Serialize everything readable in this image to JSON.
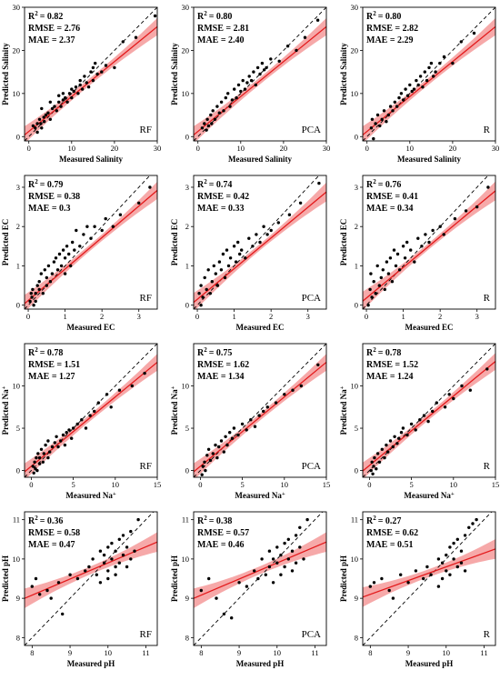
{
  "chart_data": [
    {
      "type": "scatter",
      "xlabel": "Measured Salinity",
      "ylabel": "Predicted Salinity",
      "xlim": [
        -1,
        30
      ],
      "ylim": [
        -1,
        30
      ],
      "xticks": [
        0,
        10,
        20,
        30
      ],
      "yticks": [
        0,
        10,
        20,
        30
      ],
      "r2_label": "R",
      "r2_sup": "2",
      "r2_value": "= 0.82",
      "rmse": "RMSE = 2.76",
      "mae": "MAE = 2.37",
      "model": "RF",
      "fit": {
        "slope": 0.81,
        "intercept": 1.2
      },
      "band": [
        0.8,
        2.0
      ],
      "x": [
        1.0,
        1.5,
        2.0,
        2.0,
        2.5,
        2.8,
        3.0,
        3.0,
        3.5,
        3.6,
        4.0,
        4.5,
        5.0,
        5.0,
        5.5,
        6.0,
        6.5,
        7.0,
        7.0,
        7.5,
        8.0,
        8.0,
        8.5,
        9.0,
        9.5,
        10.0,
        10.0,
        10.5,
        11.0,
        11.5,
        12.0,
        12.0,
        12.5,
        13.0,
        13.5,
        14.0,
        14.5,
        15.0,
        15.0,
        15.5,
        16.0,
        17.0,
        18.0,
        20.0,
        22.0,
        25.0,
        29.5
      ],
      "y": [
        2.5,
        2.0,
        3.0,
        1.0,
        4.0,
        3.0,
        6.5,
        2.0,
        4.5,
        3.5,
        5.0,
        5.5,
        8.0,
        4.0,
        6.5,
        7.0,
        6.0,
        9.5,
        8.0,
        7.0,
        10.0,
        8.5,
        9.0,
        8.0,
        10.0,
        11.0,
        9.0,
        10.5,
        11.5,
        10.0,
        12.0,
        13.0,
        11.0,
        14.0,
        12.5,
        11.5,
        15.0,
        16.0,
        13.0,
        17.0,
        14.5,
        15.0,
        16.5,
        16.0,
        22.0,
        23.0,
        28.0
      ]
    },
    {
      "type": "scatter",
      "xlabel": "Measured Salinity",
      "ylabel": "Predicted Salinity",
      "xlim": [
        -1,
        30
      ],
      "ylim": [
        -1,
        30
      ],
      "xticks": [
        0,
        10,
        20,
        30
      ],
      "yticks": [
        0,
        10,
        20,
        30
      ],
      "r2_label": "R",
      "r2_sup": "2",
      "r2_value": "= 0.80",
      "rmse": "RMSE = 2.81",
      "mae": "MAE = 2.40",
      "model": "PCA",
      "fit": {
        "slope": 0.81,
        "intercept": 1.2
      },
      "band": [
        0.8,
        2.0
      ],
      "x": [
        1.0,
        1.5,
        2.0,
        2.2,
        2.5,
        3.0,
        3.2,
        3.5,
        4.0,
        4.5,
        5.0,
        5.5,
        6.0,
        6.5,
        7.0,
        7.5,
        8.0,
        8.5,
        9.0,
        9.5,
        10.0,
        10.5,
        11.0,
        11.5,
        12.0,
        12.5,
        13.0,
        13.5,
        14.0,
        14.5,
        15.0,
        15.5,
        16.0,
        17.0,
        19.0,
        21.0,
        23.0,
        25.0,
        28.0
      ],
      "y": [
        2.0,
        3.0,
        1.5,
        4.0,
        2.5,
        5.0,
        3.0,
        6.0,
        4.0,
        7.0,
        5.5,
        8.0,
        6.0,
        9.0,
        10.0,
        7.0,
        8.5,
        11.0,
        9.0,
        12.0,
        10.5,
        13.0,
        11.0,
        12.5,
        14.0,
        13.0,
        15.0,
        12.0,
        16.0,
        14.5,
        17.0,
        15.5,
        16.0,
        18.0,
        17.5,
        21.0,
        20.0,
        23.0,
        27.0
      ]
    },
    {
      "type": "scatter",
      "xlabel": "Measured Salinity",
      "ylabel": "Predicted Salinity",
      "xlim": [
        -1,
        30
      ],
      "ylim": [
        -1,
        30
      ],
      "xticks": [
        0,
        10,
        20,
        30
      ],
      "yticks": [
        0,
        10,
        20,
        30
      ],
      "r2_label": "R",
      "r2_sup": "2",
      "r2_value": "= 0.80",
      "rmse": "RMSE = 2.82",
      "mae": "MAE = 2.29",
      "model": "R",
      "fit": {
        "slope": 0.81,
        "intercept": 1.2
      },
      "band": [
        0.8,
        2.0
      ],
      "x": [
        1.0,
        1.2,
        1.5,
        2.0,
        2.5,
        3.0,
        3.5,
        4.0,
        4.5,
        5.0,
        5.5,
        6.0,
        6.5,
        7.0,
        7.5,
        8.0,
        8.5,
        9.0,
        9.5,
        10.0,
        10.5,
        11.0,
        11.5,
        12.0,
        12.5,
        13.0,
        13.5,
        14.0,
        14.5,
        15.0,
        15.5,
        16.0,
        17.0,
        18.0,
        20.0,
        22.0,
        25.0
      ],
      "y": [
        2.0,
        4.0,
        -0.5,
        3.0,
        5.0,
        2.5,
        4.0,
        6.0,
        3.5,
        5.0,
        7.0,
        6.0,
        8.0,
        7.0,
        9.0,
        10.0,
        8.5,
        11.0,
        9.5,
        12.0,
        10.5,
        11.0,
        13.0,
        12.0,
        14.0,
        11.5,
        15.0,
        13.0,
        16.0,
        17.0,
        14.0,
        15.0,
        17.0,
        18.5,
        17.0,
        22.0,
        24.0
      ]
    },
    {
      "type": "scatter",
      "xlabel": "Measured EC",
      "ylabel": "Predicted EC",
      "xlim": [
        -0.1,
        3.5
      ],
      "ylim": [
        -0.1,
        3.3
      ],
      "xticks": [
        0,
        1,
        2,
        3
      ],
      "yticks": [
        0,
        1,
        2,
        3
      ],
      "r2_label": "R",
      "r2_sup": "2",
      "r2_value": "= 0.79",
      "rmse": "RMSE = 0.38",
      "mae": "MAE = 0.3",
      "model": "RF",
      "fit": {
        "slope": 0.8,
        "intercept": 0.12
      },
      "band": [
        0.08,
        0.22
      ],
      "x": [
        0.05,
        0.08,
        0.1,
        0.12,
        0.15,
        0.2,
        0.2,
        0.25,
        0.3,
        0.3,
        0.35,
        0.4,
        0.45,
        0.5,
        0.5,
        0.55,
        0.6,
        0.65,
        0.7,
        0.75,
        0.8,
        0.85,
        0.9,
        0.95,
        1.0,
        1.0,
        1.05,
        1.1,
        1.15,
        1.2,
        1.25,
        1.3,
        1.4,
        1.5,
        1.6,
        1.7,
        1.8,
        2.0,
        2.1,
        2.3,
        2.5,
        3.0,
        3.3
      ],
      "y": [
        0.1,
        0.3,
        0.2,
        0.4,
        0.0,
        0.3,
        0.1,
        0.5,
        0.4,
        0.6,
        0.8,
        0.3,
        0.9,
        0.5,
        0.7,
        1.0,
        0.6,
        0.8,
        1.1,
        1.2,
        0.9,
        1.3,
        1.0,
        1.4,
        1.2,
        0.8,
        1.5,
        1.3,
        1.0,
        1.6,
        1.4,
        1.9,
        1.5,
        1.8,
        2.0,
        1.7,
        2.0,
        1.9,
        2.2,
        2.0,
        2.3,
        2.6,
        3.0
      ]
    },
    {
      "type": "scatter",
      "xlabel": "Measured EC",
      "ylabel": "Predicted EC",
      "xlim": [
        -0.1,
        3.5
      ],
      "ylim": [
        -0.1,
        3.3
      ],
      "xticks": [
        0,
        1,
        2,
        3
      ],
      "yticks": [
        0,
        1,
        2,
        3
      ],
      "r2_label": "R",
      "r2_sup": "2",
      "r2_value": "= 0.74",
      "rmse": "RMSE = 0.42",
      "mae": "MAE = 0.33",
      "model": "PCA",
      "fit": {
        "slope": 0.78,
        "intercept": 0.15
      },
      "band": [
        0.08,
        0.24
      ],
      "x": [
        0.05,
        0.1,
        0.1,
        0.15,
        0.2,
        0.25,
        0.3,
        0.35,
        0.4,
        0.45,
        0.5,
        0.55,
        0.6,
        0.65,
        0.7,
        0.75,
        0.8,
        0.85,
        0.9,
        1.0,
        1.05,
        1.1,
        1.15,
        1.2,
        1.3,
        1.4,
        1.5,
        1.6,
        1.7,
        1.8,
        1.9,
        2.0,
        2.2,
        2.5,
        2.8,
        3.3
      ],
      "y": [
        0.3,
        0.0,
        0.5,
        0.2,
        0.7,
        0.4,
        0.9,
        0.3,
        0.6,
        1.0,
        0.8,
        0.5,
        1.1,
        0.9,
        1.3,
        0.7,
        1.4,
        1.0,
        1.2,
        1.5,
        1.1,
        1.6,
        1.3,
        1.4,
        1.2,
        1.7,
        1.5,
        1.8,
        1.6,
        2.0,
        1.8,
        1.9,
        2.1,
        2.3,
        2.6,
        3.1
      ]
    },
    {
      "type": "scatter",
      "xlabel": "Measured EC",
      "ylabel": "Predicted EC",
      "xlim": [
        -0.1,
        3.5
      ],
      "ylim": [
        -0.1,
        3.3
      ],
      "xticks": [
        0,
        1,
        2,
        3
      ],
      "yticks": [
        0,
        1,
        2,
        3
      ],
      "r2_label": "R",
      "r2_sup": "2",
      "r2_value": "= 0.76",
      "rmse": "RMSE = 0.41",
      "mae": "MAE = 0.34",
      "model": "R",
      "fit": {
        "slope": 0.78,
        "intercept": 0.18
      },
      "band": [
        0.08,
        0.24
      ],
      "x": [
        0.05,
        0.1,
        0.12,
        0.15,
        0.2,
        0.25,
        0.3,
        0.35,
        0.4,
        0.45,
        0.5,
        0.55,
        0.6,
        0.65,
        0.7,
        0.75,
        0.8,
        0.85,
        0.9,
        1.0,
        1.05,
        1.1,
        1.2,
        1.3,
        1.4,
        1.5,
        1.6,
        1.7,
        1.8,
        2.0,
        2.1,
        2.4,
        2.7,
        3.0,
        3.3
      ],
      "y": [
        0.0,
        0.4,
        0.8,
        0.2,
        0.6,
        0.3,
        1.0,
        0.5,
        0.7,
        0.9,
        0.4,
        1.1,
        0.8,
        1.2,
        0.6,
        1.4,
        1.0,
        1.3,
        0.9,
        1.5,
        1.2,
        1.6,
        1.4,
        1.1,
        1.7,
        1.5,
        1.8,
        1.6,
        1.9,
        2.0,
        1.8,
        2.2,
        2.4,
        2.5,
        3.0
      ]
    },
    {
      "type": "scatter",
      "xlabel": "Measured Na+",
      "ylabel": "Predicted Na+",
      "xlim": [
        -0.8,
        15
      ],
      "ylim": [
        -0.8,
        15
      ],
      "xticks": [
        0,
        5,
        10,
        15
      ],
      "yticks": [
        0,
        5,
        10
      ],
      "r2_label": "R",
      "r2_sup": "2",
      "r2_value": "= 0.78",
      "rmse": "RMSE = 1.51",
      "mae": "MAE = 1.27",
      "model": "RF",
      "fit": {
        "slope": 0.82,
        "intercept": 0.5
      },
      "band": [
        0.4,
        1.0
      ],
      "x": [
        0.2,
        0.3,
        0.4,
        0.5,
        0.6,
        0.7,
        0.8,
        1.0,
        1.0,
        1.2,
        1.4,
        1.5,
        1.7,
        2.0,
        2.0,
        2.2,
        2.5,
        2.8,
        3.0,
        3.2,
        3.5,
        3.8,
        4.0,
        4.2,
        4.5,
        4.8,
        5.0,
        5.5,
        6.0,
        6.5,
        7.0,
        7.5,
        8.0,
        9.0,
        9.5,
        10.5,
        12.0,
        13.5
      ],
      "y": [
        0.5,
        -0.3,
        1.0,
        0.2,
        1.5,
        0.0,
        2.0,
        0.8,
        1.5,
        2.5,
        1.0,
        2.0,
        3.0,
        1.5,
        3.5,
        2.2,
        2.8,
        3.3,
        4.0,
        2.8,
        3.5,
        4.2,
        3.0,
        4.5,
        4.8,
        3.8,
        5.0,
        5.5,
        6.0,
        5.0,
        6.5,
        7.0,
        8.0,
        9.0,
        7.5,
        9.5,
        10.0,
        11.5
      ]
    },
    {
      "type": "scatter",
      "xlabel": "Measured Na+",
      "ylabel": "Predicted Na+",
      "xlim": [
        -0.8,
        15
      ],
      "ylim": [
        -0.8,
        15
      ],
      "xticks": [
        0,
        5,
        10,
        15
      ],
      "yticks": [
        0,
        5,
        10
      ],
      "r2_label": "R",
      "r2_sup": "2",
      "r2_value": "= 0.75",
      "rmse": "RMSE = 1.62",
      "mae": "MAE = 1.34",
      "model": "PCA",
      "fit": {
        "slope": 0.82,
        "intercept": 0.5
      },
      "band": [
        0.4,
        1.0
      ],
      "x": [
        0.2,
        0.3,
        0.5,
        0.6,
        0.8,
        1.0,
        1.2,
        1.5,
        1.8,
        2.0,
        2.2,
        2.5,
        2.8,
        3.0,
        3.2,
        3.5,
        3.8,
        4.0,
        4.5,
        5.0,
        5.5,
        6.0,
        6.5,
        7.0,
        7.5,
        8.0,
        9.0,
        10.0,
        11.0,
        12.0,
        14.0
      ],
      "y": [
        -0.5,
        0.5,
        1.0,
        0.0,
        1.8,
        2.5,
        1.2,
        2.0,
        3.0,
        1.5,
        2.8,
        3.5,
        2.2,
        4.0,
        3.0,
        4.5,
        3.8,
        5.0,
        4.2,
        5.5,
        4.8,
        6.0,
        5.2,
        6.5,
        7.0,
        7.5,
        8.0,
        9.0,
        9.5,
        10.0,
        12.5
      ]
    },
    {
      "type": "scatter",
      "xlabel": "Measured Na+",
      "ylabel": "Predicted Na+",
      "xlim": [
        -0.8,
        15
      ],
      "ylim": [
        -0.8,
        15
      ],
      "xticks": [
        0,
        5,
        10,
        15
      ],
      "yticks": [
        0,
        5,
        10
      ],
      "r2_label": "R",
      "r2_sup": "2",
      "r2_value": "= 0.78",
      "rmse": "RMSE = 1.52",
      "mae": "MAE = 1.24",
      "model": "R",
      "fit": {
        "slope": 0.82,
        "intercept": 0.6
      },
      "band": [
        0.4,
        1.0
      ],
      "x": [
        0.2,
        0.3,
        0.4,
        0.5,
        0.6,
        0.8,
        1.0,
        1.2,
        1.5,
        1.8,
        2.0,
        2.2,
        2.5,
        2.8,
        3.0,
        3.3,
        3.5,
        3.8,
        4.0,
        4.5,
        5.0,
        5.5,
        6.0,
        6.5,
        7.0,
        7.5,
        8.0,
        9.0,
        9.5,
        10.0,
        11.0,
        12.0,
        14.0
      ],
      "y": [
        0.0,
        1.0,
        -0.4,
        0.5,
        1.5,
        0.2,
        2.0,
        1.0,
        2.5,
        1.5,
        3.0,
        2.2,
        3.5,
        2.8,
        4.0,
        3.2,
        3.8,
        4.5,
        5.0,
        4.2,
        5.5,
        4.8,
        6.0,
        6.5,
        5.8,
        7.0,
        8.0,
        7.5,
        9.0,
        8.5,
        10.0,
        9.5,
        12.0
      ]
    },
    {
      "type": "scatter",
      "xlabel": "Measured pH",
      "ylabel": "Predicted pH",
      "xlim": [
        7.8,
        11.3
      ],
      "ylim": [
        7.8,
        11.2
      ],
      "xticks": [
        8,
        9,
        10,
        11
      ],
      "yticks": [
        8,
        9,
        10,
        11
      ],
      "r2_label": "R",
      "r2_sup": "2",
      "r2_value": "= 0.36",
      "rmse": "RMSE = 0.58",
      "mae": "MAE = 0.47",
      "model": "RF",
      "fit": {
        "slope": 0.41,
        "intercept": 5.8
      },
      "band": [
        0.1,
        0.25
      ],
      "x": [
        8.0,
        8.1,
        8.2,
        8.4,
        8.5,
        8.7,
        8.8,
        9.0,
        9.2,
        9.4,
        9.5,
        9.6,
        9.7,
        9.8,
        9.8,
        9.9,
        9.9,
        10.0,
        10.0,
        10.0,
        10.1,
        10.1,
        10.2,
        10.2,
        10.2,
        10.3,
        10.3,
        10.4,
        10.4,
        10.5,
        10.5,
        10.6,
        10.6,
        10.7,
        10.8
      ],
      "y": [
        9.3,
        9.5,
        9.1,
        9.2,
        9.0,
        9.4,
        8.6,
        9.6,
        9.5,
        9.7,
        9.8,
        10.0,
        9.6,
        10.2,
        9.4,
        9.9,
        10.1,
        10.3,
        9.7,
        9.5,
        10.0,
        10.4,
        9.8,
        10.2,
        9.6,
        10.5,
        9.9,
        10.1,
        10.6,
        9.8,
        10.3,
        10.0,
        10.7,
        10.2,
        11.0
      ]
    },
    {
      "type": "scatter",
      "xlabel": "Measured pH",
      "ylabel": "Predicted pH",
      "xlim": [
        7.8,
        11.3
      ],
      "ylim": [
        7.8,
        11.2
      ],
      "xticks": [
        8,
        9,
        10,
        11
      ],
      "yticks": [
        8,
        9,
        10,
        11
      ],
      "r2_label": "R",
      "r2_sup": "2",
      "r2_value": "= 0.38",
      "rmse": "RMSE = 0.57",
      "mae": "MAE = 0.46",
      "model": "PCA",
      "fit": {
        "slope": 0.41,
        "intercept": 5.8
      },
      "band": [
        0.1,
        0.25
      ],
      "x": [
        8.0,
        8.2,
        8.4,
        8.6,
        8.8,
        9.0,
        9.2,
        9.4,
        9.5,
        9.6,
        9.7,
        9.8,
        9.8,
        9.9,
        9.9,
        10.0,
        10.0,
        10.1,
        10.1,
        10.2,
        10.2,
        10.3,
        10.3,
        10.4,
        10.4,
        10.5,
        10.5,
        10.6,
        10.6,
        10.7,
        10.8
      ],
      "y": [
        9.2,
        9.5,
        9.0,
        8.6,
        8.5,
        9.4,
        9.3,
        9.7,
        9.5,
        10.0,
        9.6,
        10.2,
        9.8,
        10.0,
        9.4,
        10.3,
        9.9,
        10.1,
        9.6,
        10.4,
        9.8,
        10.0,
        10.5,
        9.7,
        10.2,
        10.6,
        9.9,
        10.3,
        10.8,
        10.0,
        11.0
      ]
    },
    {
      "type": "scatter",
      "xlabel": "Measured pH",
      "ylabel": "Predicted pH",
      "xlim": [
        7.8,
        11.3
      ],
      "ylim": [
        7.8,
        11.2
      ],
      "xticks": [
        8,
        9,
        10,
        11
      ],
      "yticks": [
        8,
        9,
        10,
        11
      ],
      "r2_label": "R",
      "r2_sup": "2",
      "r2_value": "= 0.27",
      "rmse": "RMSE = 0.62",
      "mae": "MAE = 0.51",
      "model": "R",
      "fit": {
        "slope": 0.35,
        "intercept": 6.3
      },
      "band": [
        0.1,
        0.25
      ],
      "x": [
        8.0,
        8.1,
        8.3,
        8.5,
        8.6,
        8.8,
        9.0,
        9.2,
        9.4,
        9.5,
        9.6,
        9.8,
        9.8,
        9.9,
        9.9,
        10.0,
        10.0,
        10.1,
        10.1,
        10.2,
        10.2,
        10.3,
        10.3,
        10.4,
        10.4,
        10.5,
        10.5,
        10.6,
        10.7,
        10.8
      ],
      "y": [
        9.3,
        9.4,
        9.5,
        9.2,
        9.0,
        9.6,
        9.4,
        9.7,
        9.5,
        9.8,
        9.6,
        10.0,
        9.3,
        9.9,
        9.5,
        10.1,
        9.7,
        10.3,
        9.6,
        10.0,
        10.4,
        9.8,
        10.5,
        9.9,
        10.2,
        10.6,
        9.7,
        10.8,
        10.9,
        11.0
      ]
    }
  ]
}
